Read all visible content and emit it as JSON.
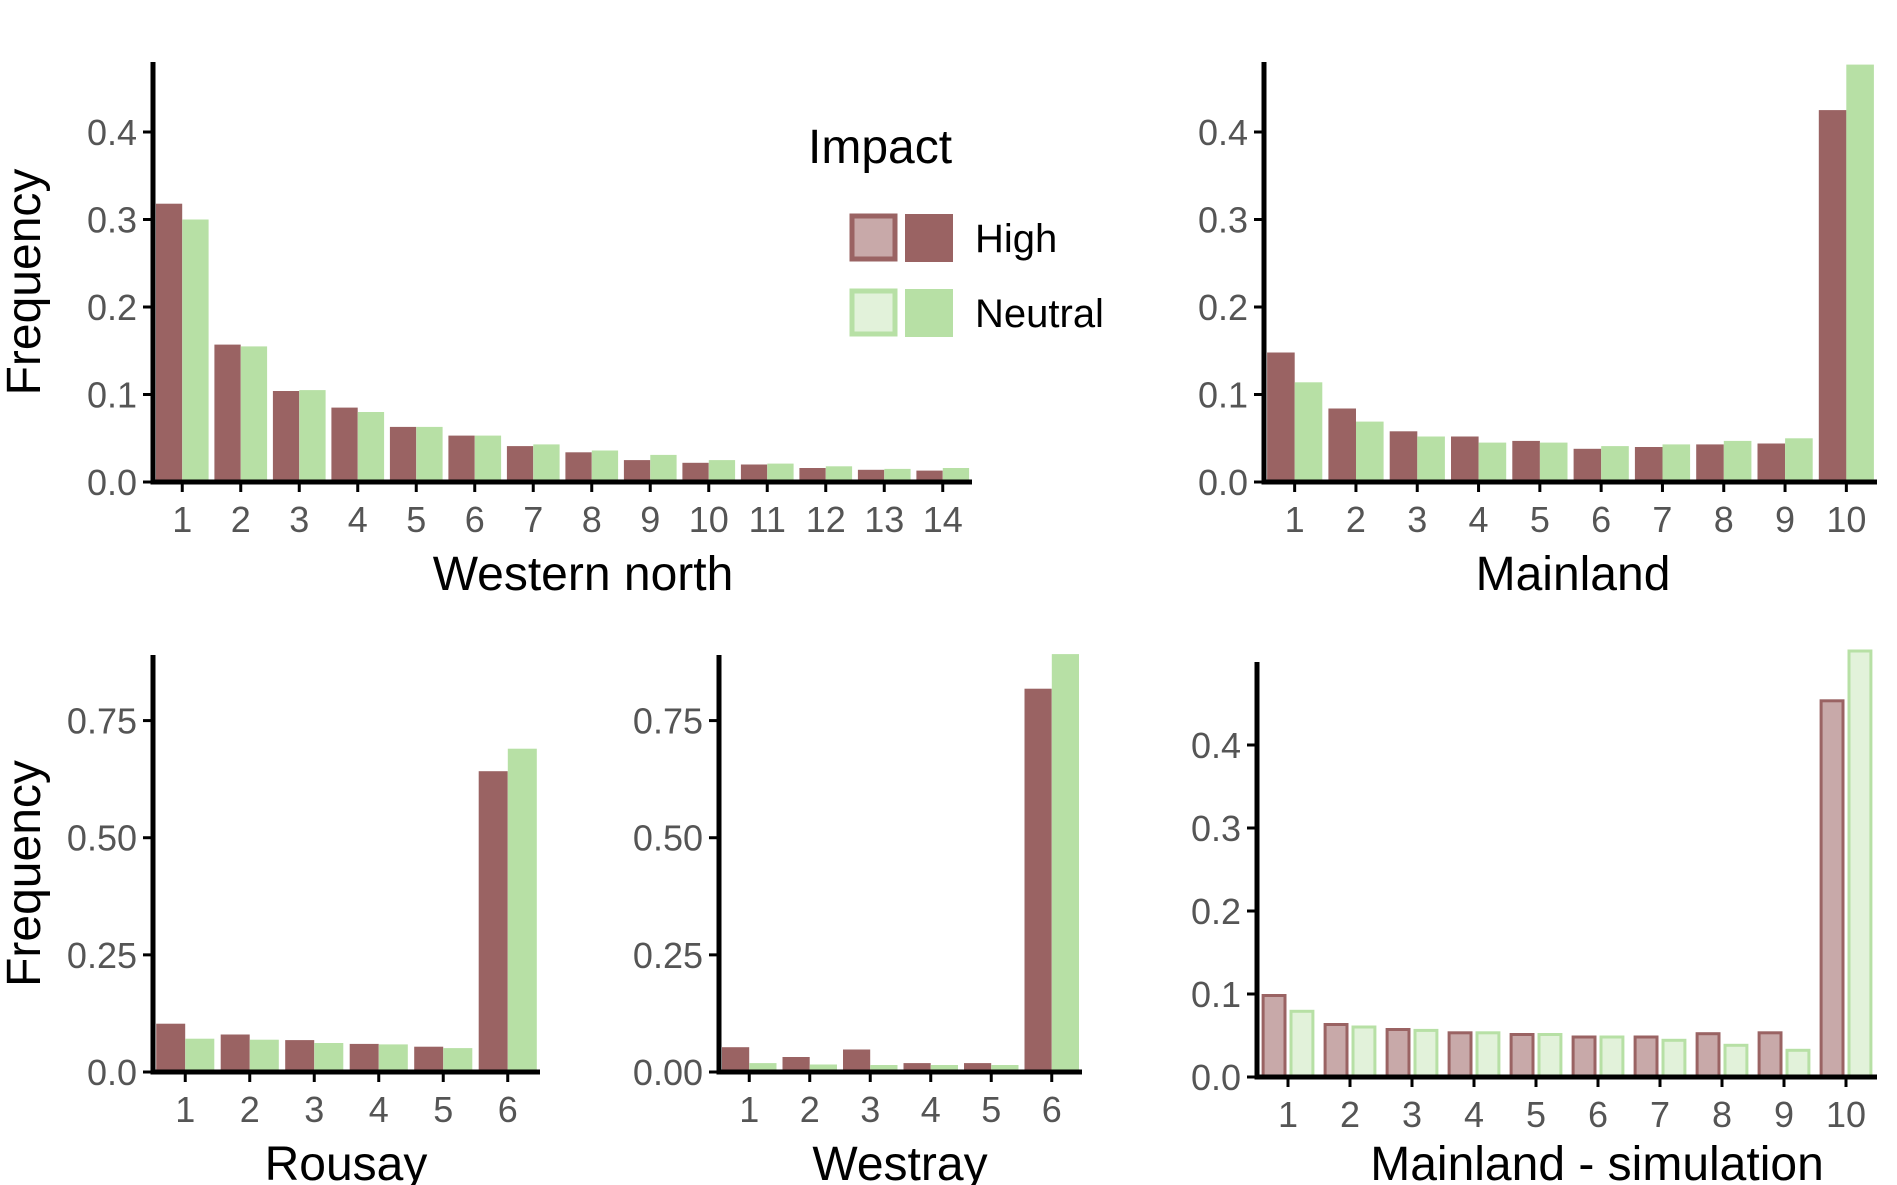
{
  "colors": {
    "high": "#9a6363",
    "neutral": "#b7e0a5",
    "high_light": "#c8a9a9",
    "neutral_light": "#e2f2da",
    "axis": "#000000"
  },
  "legend": {
    "title": "Impact",
    "items": [
      {
        "label": "High",
        "key": "high"
      },
      {
        "label": "Neutral",
        "key": "neutral"
      }
    ]
  },
  "chart_data": [
    {
      "type": "bar",
      "panel": "western-north",
      "xlabel": "Western north",
      "ylabel": "Frequency",
      "categories": [
        "1",
        "2",
        "3",
        "4",
        "5",
        "6",
        "7",
        "8",
        "9",
        "10",
        "11",
        "12",
        "13",
        "14"
      ],
      "ylim": [
        0,
        0.48
      ],
      "yticks": [
        "0.0",
        "0.1",
        "0.2",
        "0.3",
        "0.4"
      ],
      "series": [
        {
          "name": "High",
          "key": "high",
          "style": "solid",
          "values": [
            0.318,
            0.157,
            0.104,
            0.085,
            0.063,
            0.053,
            0.041,
            0.034,
            0.025,
            0.022,
            0.02,
            0.016,
            0.014,
            0.013
          ]
        },
        {
          "name": "Neutral",
          "key": "neutral",
          "style": "solid",
          "values": [
            0.3,
            0.155,
            0.105,
            0.08,
            0.063,
            0.053,
            0.043,
            0.036,
            0.031,
            0.025,
            0.021,
            0.018,
            0.015,
            0.016
          ]
        }
      ]
    },
    {
      "type": "bar",
      "panel": "mainland",
      "xlabel": "Mainland",
      "ylabel": "",
      "categories": [
        "1",
        "2",
        "3",
        "4",
        "5",
        "6",
        "7",
        "8",
        "9",
        "10"
      ],
      "ylim": [
        0,
        0.48
      ],
      "yticks": [
        "0.0",
        "0.1",
        "0.2",
        "0.3",
        "0.4"
      ],
      "series": [
        {
          "name": "High",
          "key": "high",
          "style": "solid",
          "values": [
            0.148,
            0.084,
            0.058,
            0.052,
            0.047,
            0.038,
            0.04,
            0.043,
            0.044,
            0.425
          ]
        },
        {
          "name": "Neutral",
          "key": "neutral",
          "style": "solid",
          "values": [
            0.114,
            0.069,
            0.052,
            0.045,
            0.045,
            0.041,
            0.043,
            0.047,
            0.05,
            0.477
          ]
        }
      ]
    },
    {
      "type": "bar",
      "panel": "rousay",
      "xlabel": "Rousay",
      "ylabel": "Frequency",
      "categories": [
        "1",
        "2",
        "3",
        "4",
        "5",
        "6"
      ],
      "ylim": [
        0,
        0.89
      ],
      "yticks": [
        "0.0",
        "0.25",
        "0.50",
        "0.75"
      ],
      "series": [
        {
          "name": "High",
          "key": "high",
          "style": "solid",
          "values": [
            0.103,
            0.08,
            0.068,
            0.06,
            0.054,
            0.642
          ]
        },
        {
          "name": "Neutral",
          "key": "neutral",
          "style": "solid",
          "values": [
            0.071,
            0.069,
            0.062,
            0.059,
            0.051,
            0.69
          ]
        }
      ]
    },
    {
      "type": "bar",
      "panel": "westray",
      "xlabel": "Westray",
      "ylabel": "",
      "categories": [
        "1",
        "2",
        "3",
        "4",
        "5",
        "6"
      ],
      "ylim": [
        0,
        0.89
      ],
      "yticks": [
        "0.00",
        "0.25",
        "0.50",
        "0.75"
      ],
      "series": [
        {
          "name": "High",
          "key": "high",
          "style": "solid",
          "values": [
            0.053,
            0.032,
            0.048,
            0.019,
            0.019,
            0.818
          ]
        },
        {
          "name": "Neutral",
          "key": "neutral",
          "style": "solid",
          "values": [
            0.019,
            0.016,
            0.015,
            0.015,
            0.015,
            0.892
          ]
        }
      ]
    },
    {
      "type": "bar",
      "panel": "mainland-simulation",
      "xlabel": "Mainland - simulation",
      "ylabel": "",
      "categories": [
        "1",
        "2",
        "3",
        "4",
        "5",
        "6",
        "7",
        "8",
        "9",
        "10"
      ],
      "ylim": [
        0,
        0.5
      ],
      "yticks": [
        "0.0",
        "0.1",
        "0.2",
        "0.3",
        "0.4"
      ],
      "series": [
        {
          "name": "High",
          "key": "high",
          "style": "light",
          "values": [
            0.1,
            0.065,
            0.059,
            0.055,
            0.053,
            0.05,
            0.05,
            0.054,
            0.055,
            0.455
          ]
        },
        {
          "name": "Neutral",
          "key": "neutral",
          "style": "light",
          "values": [
            0.081,
            0.062,
            0.058,
            0.055,
            0.053,
            0.05,
            0.046,
            0.04,
            0.034,
            0.515
          ]
        }
      ]
    }
  ]
}
